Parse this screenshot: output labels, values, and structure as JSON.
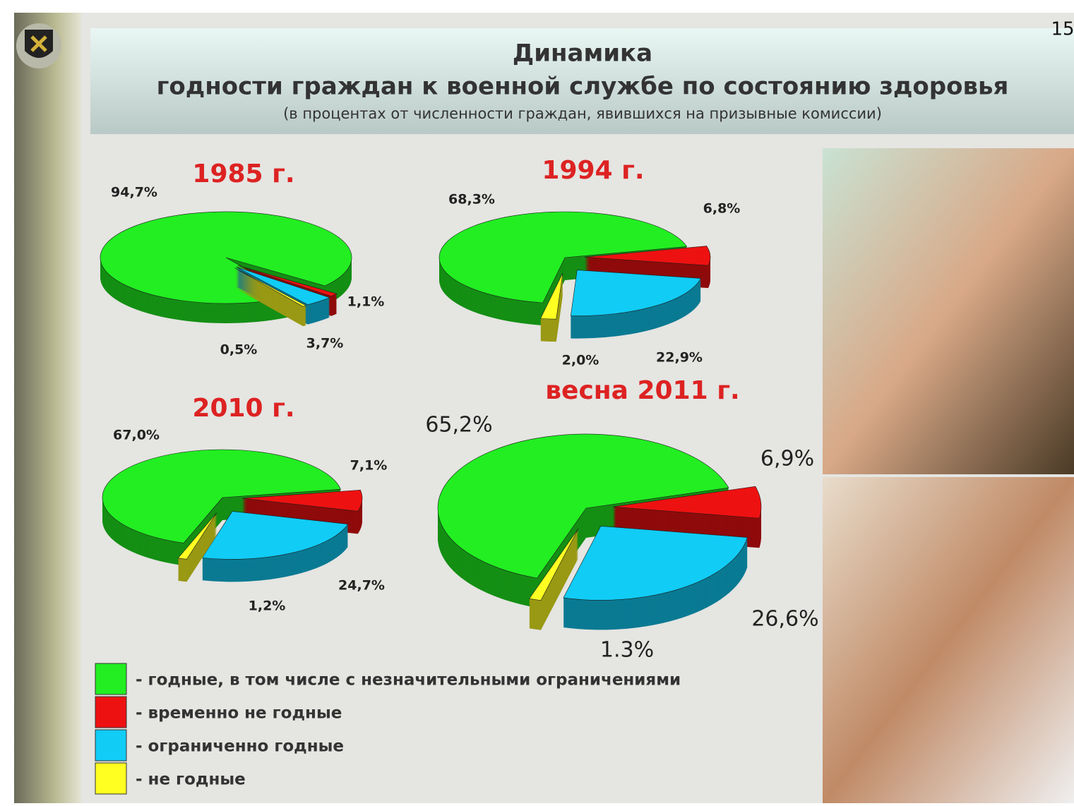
{
  "page_number": "15",
  "title_line1": "Динамика",
  "title_line2": "годности граждан к военной службе по состоянию здоровья",
  "subtitle": "(в процентах от численности граждан, явившихся  на призывные комиссии)",
  "legend": [
    "- годные, в том числе с незначительными ограничениями",
    "- временно не годные",
    "- ограниченно годные",
    "- не годные"
  ],
  "colors": [
    "#22ee22",
    "#ee1111",
    "#11ccf5",
    "#ffff22"
  ],
  "chart_data": [
    {
      "type": "pie",
      "title": "1985 г.",
      "values": [
        94.7,
        1.1,
        3.7,
        0.5
      ],
      "value_labels": [
        "94,7%",
        "1,1%",
        "3,7%",
        "0,5%"
      ]
    },
    {
      "type": "pie",
      "title": "1994 г.",
      "values": [
        68.3,
        6.8,
        22.9,
        2.0
      ],
      "value_labels": [
        "68,3%",
        "6,8%",
        "22,9%",
        "2,0%"
      ]
    },
    {
      "type": "pie",
      "title": "2010 г.",
      "values": [
        67.0,
        7.1,
        24.7,
        1.2
      ],
      "value_labels": [
        "67,0%",
        "7,1%",
        "24,7%",
        "1,2%"
      ]
    },
    {
      "type": "pie",
      "title": "весна 2011 г.",
      "values": [
        65.2,
        6.9,
        26.6,
        1.3
      ],
      "value_labels": [
        "65,2%",
        "6,9%",
        "26,6%",
        "1.3%"
      ]
    }
  ]
}
